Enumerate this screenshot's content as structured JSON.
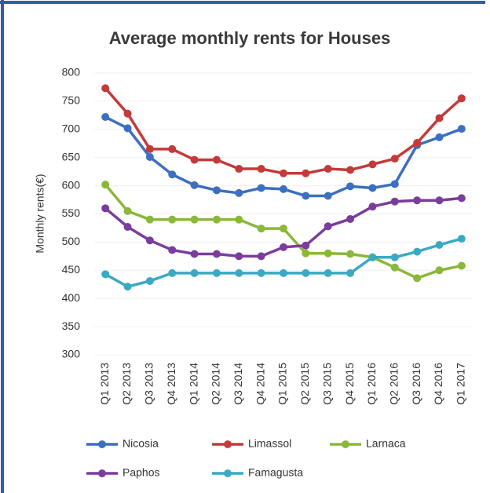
{
  "chart_data": {
    "type": "line",
    "title": "Average monthly rents for Houses",
    "y_label": "Monthly rents(€)",
    "categories": [
      "Q1 2013",
      "Q2 2013",
      "Q3 2013",
      "Q4 2013",
      "Q1 2014",
      "Q2 2014",
      "Q3 2014",
      "Q4 2014",
      "Q1 2015",
      "Q2 2015",
      "Q3 2015",
      "Q4 2015",
      "Q1 2016",
      "Q2 2016",
      "Q3 2016",
      "Q4 2016",
      "Q1 2017"
    ],
    "series": [
      {
        "name": "Nicosia",
        "color": "#3d6fc0",
        "values": [
          722,
          702,
          651,
          620,
          601,
          592,
          587,
          596,
          594,
          582,
          582,
          599,
          596,
          603,
          672,
          686,
          701
        ]
      },
      {
        "name": "Limassol",
        "color": "#c43a3a",
        "values": [
          773,
          728,
          665,
          665,
          646,
          646,
          630,
          630,
          622,
          622,
          630,
          628,
          638,
          648,
          676,
          720,
          755
        ]
      },
      {
        "name": "Larnaca",
        "color": "#8ab83a",
        "values": [
          602,
          555,
          540,
          540,
          540,
          540,
          540,
          524,
          524,
          480,
          480,
          479,
          473,
          455,
          436,
          450,
          458
        ]
      },
      {
        "name": "Paphos",
        "color": "#7a3d9c",
        "values": [
          560,
          527,
          503,
          486,
          479,
          479,
          475,
          475,
          491,
          494,
          528,
          541,
          563,
          572,
          574,
          574,
          578
        ]
      },
      {
        "name": "Famagusta",
        "color": "#3aaac2",
        "values": [
          443,
          421,
          431,
          445,
          445,
          445,
          445,
          445,
          445,
          445,
          445,
          445,
          473,
          473,
          483,
          495,
          506
        ]
      }
    ],
    "ylim": [
      300,
      800
    ],
    "yticks": [
      300,
      350,
      400,
      450,
      500,
      550,
      600,
      650,
      700,
      750,
      800
    ],
    "grid": true,
    "legend": "bottom"
  }
}
